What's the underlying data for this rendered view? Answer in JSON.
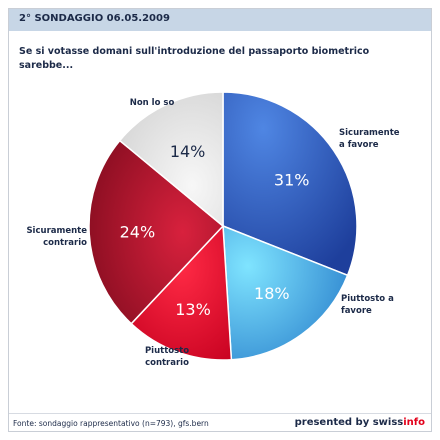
{
  "header": {
    "title": "2° SONDAGGIO 06.05.2009"
  },
  "question": "Se si votasse domani sull'introduzione del passaporto biometrico sarebbe...",
  "chart_data": {
    "type": "pie",
    "slices": [
      {
        "label": "Sicuramente\na favore",
        "value": 31,
        "display": "31%",
        "color": "#2f5fbf"
      },
      {
        "label": "Piuttosto a\nfavore",
        "value": 18,
        "display": "18%",
        "color": "#4fb3e8"
      },
      {
        "label": "Piuttosto\ncontrario",
        "value": 13,
        "display": "13%",
        "color": "#e0112d"
      },
      {
        "label": "Sicuramente\ncontrario",
        "value": 24,
        "display": "24%",
        "color": "#a5102a"
      },
      {
        "label": "Non lo so",
        "value": 14,
        "display": "14%",
        "color": "#e6e6e6"
      }
    ]
  },
  "footer": {
    "source": "Fonte: sondaggio rappresentativo (n=793), gfs.bern",
    "brand_prefix": "presented by swiss",
    "brand_accent": "info"
  }
}
